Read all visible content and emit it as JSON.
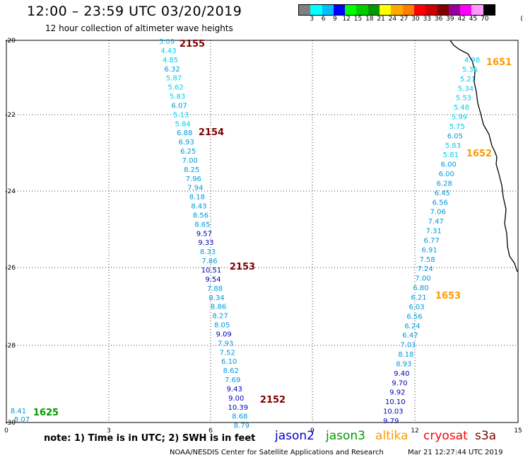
{
  "header": {
    "title": "12:00 – 23:59 UTC 03/20/2019",
    "subtitle": "12 hour collection of altimeter wave heights"
  },
  "colorbar": {
    "colors": [
      "#808080",
      "#00ffff",
      "#00bfff",
      "#0000ff",
      "#00ff00",
      "#00cc00",
      "#009900",
      "#ffff00",
      "#ffaa00",
      "#ff7f00",
      "#ff0000",
      "#cc0000",
      "#800000",
      "#990099",
      "#ff00ff",
      "#ff99ff",
      "#000000"
    ],
    "labels": [
      "3",
      "6",
      "9",
      "12",
      "15",
      "18",
      "21",
      "24",
      "27",
      "30",
      "33",
      "36",
      "39",
      "42",
      "45",
      "70",
      "(ft)"
    ]
  },
  "map": {
    "lon_ticks": [
      "0",
      "3",
      "6",
      "9",
      "12",
      "15"
    ],
    "lat_ticks": [
      "-20",
      "-22",
      "-24",
      "-26",
      "-28",
      "-30"
    ],
    "xlim": [
      0,
      15
    ],
    "ylim": [
      -30,
      -20
    ]
  },
  "coastline_icon": "coastline",
  "tracks": [
    {
      "id": "west-pass",
      "values": [
        "5.09",
        "4.43",
        "4.85",
        "6.32",
        "5.87",
        "5.62",
        "5.83",
        "6.07",
        "5.13",
        "5.84",
        "6.88",
        "6.93",
        "6.25",
        "7.00",
        "8.25",
        "7.96",
        "7.94",
        "8.18",
        "8.43",
        "8.56",
        "8.65",
        "9.57",
        "9.33",
        "8.33",
        "7.86",
        "10.51",
        "9.54",
        "7.88",
        "8.34",
        "8.86",
        "8.27",
        "8.05",
        "9.09",
        "7.93",
        "7.52",
        "6.10",
        "8.62",
        "7.69",
        "9.43",
        "9.00",
        "10.39",
        "8.68",
        "8.79"
      ]
    },
    {
      "id": "east-pass",
      "values": [
        "4.98",
        "5.36",
        "5.21",
        "5.34",
        "5.53",
        "5.48",
        "5.99",
        "5.75",
        "6.05",
        "5.83",
        "5.81",
        "6.00",
        "6.00",
        "6.28",
        "6.45",
        "6.56",
        "7.06",
        "7.47",
        "7.31",
        "6.77",
        "6.91",
        "7.58",
        "7.24",
        "7.00",
        "6.80",
        "6.21",
        "6.03",
        "6.56",
        "6.24",
        "6.47",
        "7.03",
        "8.18",
        "8.93",
        "9.40",
        "9.70",
        "9.92",
        "10.10",
        "10.03",
        "9.79"
      ]
    },
    {
      "id": "corner-pass",
      "values": [
        "8.41",
        "8.07"
      ]
    }
  ],
  "pass_labels": [
    {
      "text": "2155",
      "color": "#800000"
    },
    {
      "text": "2154",
      "color": "#800000"
    },
    {
      "text": "2153",
      "color": "#800000"
    },
    {
      "text": "2152",
      "color": "#800000"
    },
    {
      "text": "1651",
      "color": "#ff9900"
    },
    {
      "text": "1652",
      "color": "#ff9900"
    },
    {
      "text": "1653",
      "color": "#ff9900"
    },
    {
      "text": "1625",
      "color": "#009900"
    }
  ],
  "footer": {
    "note": "note:  1) Time is in UTC;  2) SWH is in feet",
    "satellites": [
      {
        "name": "jason2",
        "color": "#0000cc"
      },
      {
        "name": "jason3",
        "color": "#009900"
      },
      {
        "name": "altika",
        "color": "#ff9900"
      },
      {
        "name": "cryosat",
        "color": "#ff0000"
      },
      {
        "name": "s3a",
        "color": "#800000"
      }
    ],
    "credit": "NOAA/NESDIS Center for Satellite Applications and Research",
    "timestamp": "Mar 21 12:27:44 UTC 2019"
  }
}
